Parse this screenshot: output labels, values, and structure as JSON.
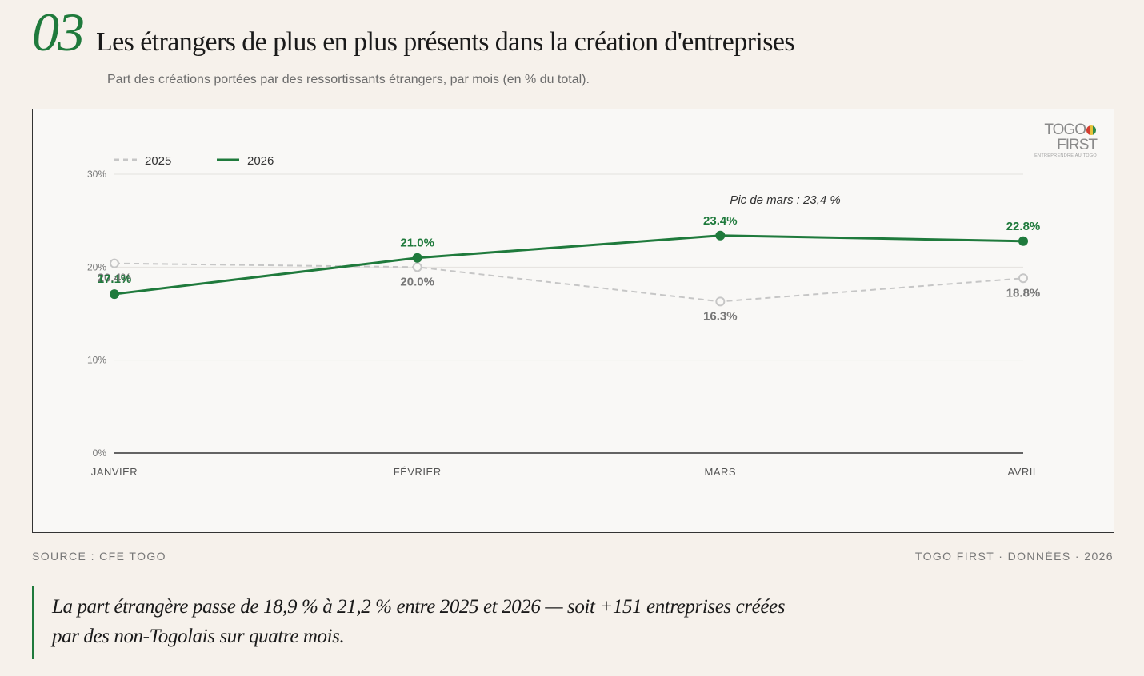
{
  "header": {
    "number": "03",
    "title": "Les étrangers de plus en plus présents dans la création d'entreprises",
    "subtitle": "Part des créations portées par des ressortissants étrangers, par mois (en % du total)."
  },
  "logo": {
    "brand_left": "TOGO",
    "brand_right": "FIRST",
    "tagline": "ENTREPRENDRE AU TOGO"
  },
  "chart_data": {
    "type": "line",
    "categories": [
      "JANVIER",
      "FÉVRIER",
      "MARS",
      "AVRIL"
    ],
    "y_ticks": [
      "0%",
      "10%",
      "20%",
      "30%"
    ],
    "ylim": [
      0,
      30
    ],
    "grid": true,
    "legend_position": "top-left",
    "series": [
      {
        "name": "2025",
        "values": [
          20.4,
          20.0,
          16.3,
          18.8
        ],
        "labels": [
          "20.4%",
          "20.0%",
          "16.3%",
          "18.8%"
        ],
        "color": "#c6c6c6",
        "style": "dashed"
      },
      {
        "name": "2026",
        "values": [
          17.1,
          21.0,
          23.4,
          22.8
        ],
        "labels": [
          "17.1%",
          "21.0%",
          "23.4%",
          "22.8%"
        ],
        "color": "#1f7a3c",
        "style": "solid"
      }
    ],
    "annotation": "Pic de mars : 23,4 %"
  },
  "footer": {
    "source": "SOURCE : CFE TOGO",
    "credit": "TOGO FIRST · DONNÉES · 2026"
  },
  "quote": "La part étrangère passe de 18,9 % à 21,2 % entre 2025 et 2026 — soit +151 entreprises créées par des non-Togolais sur quatre mois."
}
